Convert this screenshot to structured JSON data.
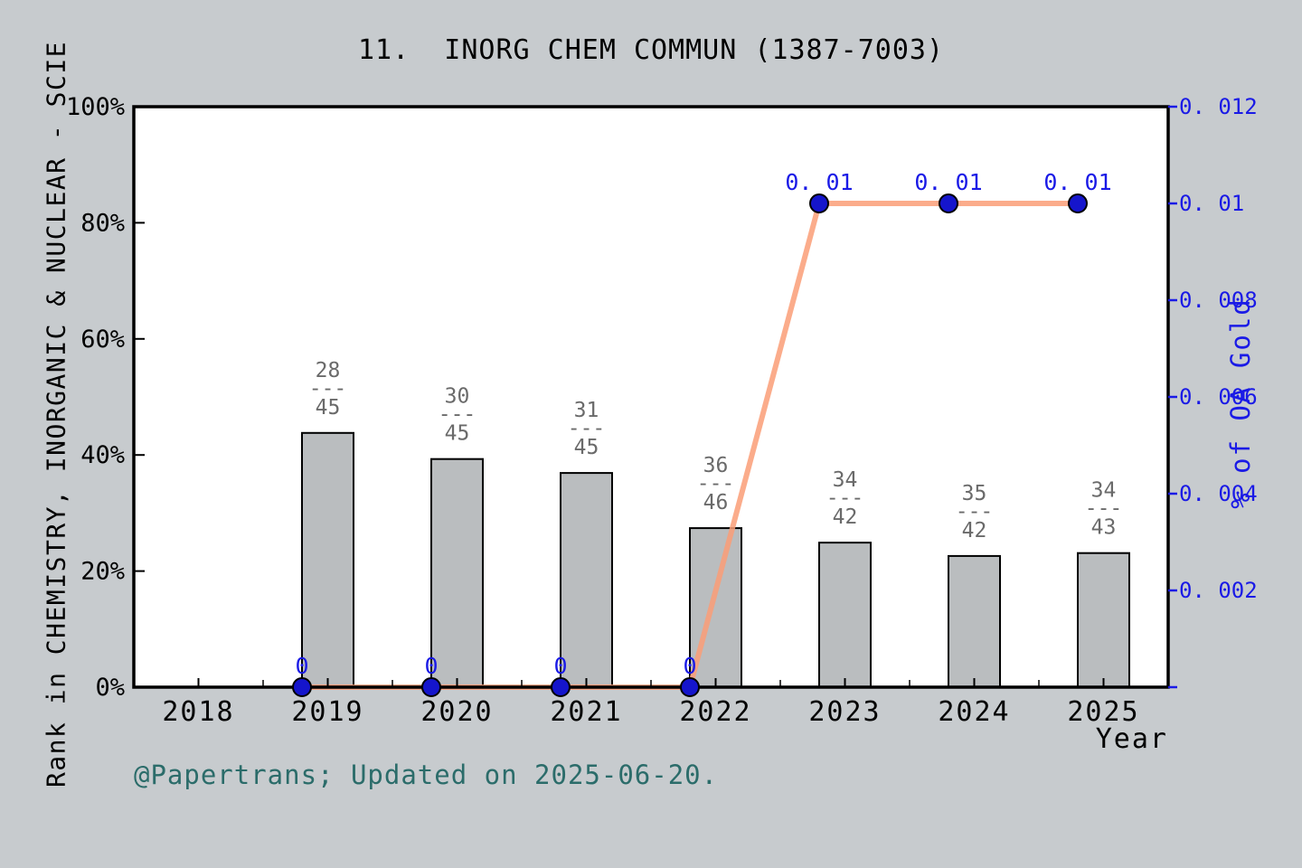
{
  "title": "11.  INORG CHEM COMMUN (1387-7003)",
  "footer": "@Papertrans; Updated on 2025-06-20.",
  "x_axis_title": "Year",
  "left_axis_title": "Rank in CHEMISTRY, INORGANIC & NUCLEAR - SCIE",
  "right_axis_title": "% of OA Gold",
  "colors": {
    "background": "#c7cbce",
    "plot_background": "#ffffff",
    "axis": "#000000",
    "bar_fill": "#babdbf",
    "bar_edge": "#000000",
    "line": "#fa9e77",
    "marker_fill": "#1515cc",
    "marker_edge": "#000000",
    "blue_text": "#1a1ae6",
    "bar_label_text": "#6a6a6a",
    "footer_text": "#2b6c6a"
  },
  "chart_data": {
    "type": "bar+line",
    "title": "11.  INORG CHEM COMMUN (1387-7003)",
    "xlabel": "Year",
    "ylabel_left": "Rank in CHEMISTRY, INORGANIC & NUCLEAR - SCIE",
    "ylabel_right": "% of OA Gold",
    "grid": false,
    "legend": null,
    "categories": [
      "2018",
      "2019",
      "2020",
      "2021",
      "2022",
      "2023",
      "2024",
      "2025"
    ],
    "bar_series": {
      "name": "Rank in category",
      "axis": "left",
      "values_percent": [
        null,
        43.8,
        39.3,
        36.9,
        27.4,
        24.9,
        22.6,
        23.1
      ],
      "fraction_labels": [
        null,
        {
          "numerator": "28",
          "denominator": "45"
        },
        {
          "numerator": "30",
          "denominator": "45"
        },
        {
          "numerator": "31",
          "denominator": "45"
        },
        {
          "numerator": "36",
          "denominator": "46"
        },
        {
          "numerator": "34",
          "denominator": "42"
        },
        {
          "numerator": "35",
          "denominator": "42"
        },
        {
          "numerator": "34",
          "denominator": "43"
        }
      ],
      "fraction_separator": "---"
    },
    "line_series": {
      "name": "% of OA Gold",
      "axis": "right",
      "values": [
        null,
        0,
        0,
        0,
        0,
        0.01,
        0.01,
        0.01
      ],
      "point_labels": [
        null,
        "0",
        "0",
        "0",
        "0",
        "0. 01",
        "0. 01",
        "0. 01"
      ]
    },
    "left_axis": {
      "min": 0,
      "max": 100,
      "ticks": [
        0,
        20,
        40,
        60,
        80,
        100
      ],
      "tick_labels": [
        "0%",
        "20%",
        "40%",
        "60%",
        "80%",
        "100%"
      ]
    },
    "right_axis": {
      "min": 0,
      "max": 0.012,
      "ticks": [
        0,
        0.002,
        0.004,
        0.006,
        0.008,
        0.01,
        0.012
      ],
      "tick_labels": [
        "",
        "0. 002",
        "0. 004",
        "0. 006",
        "0. 008",
        "0. 01",
        "0. 012"
      ]
    },
    "x_axis": {
      "tick_labels": [
        "2018",
        "2019",
        "2020",
        "2021",
        "2022",
        "2023",
        "2024",
        "2025"
      ],
      "minor_ticks_between": true
    }
  }
}
